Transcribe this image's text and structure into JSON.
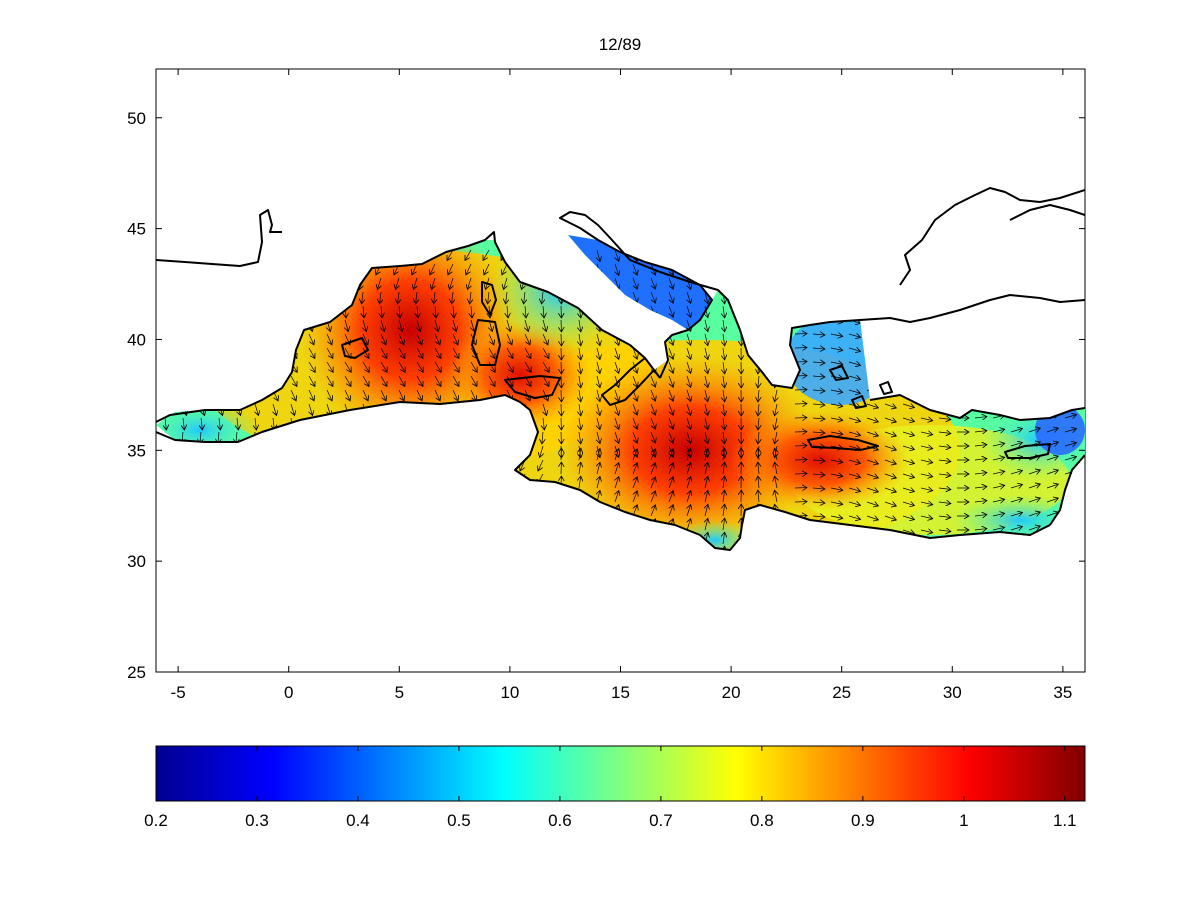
{
  "map": {
    "title": "12/89",
    "region": "Mediterranean Sea",
    "x_ticks": [
      "-5",
      "0",
      "5",
      "10",
      "15",
      "20",
      "25",
      "30",
      "35"
    ],
    "y_ticks": [
      "25",
      "30",
      "35",
      "40",
      "45",
      "50"
    ],
    "colormap": "jet",
    "colors": {
      "low": "#00008f",
      "mid": "#00ffff",
      "high_mid": "#ffff00",
      "high": "#ff0000",
      "max": "#800000",
      "coastline": "#000000",
      "arrows": "#000000"
    }
  },
  "colorbar": {
    "min": 0.2,
    "max": 1.12,
    "tick_labels": [
      "0.2",
      "0.3",
      "0.4",
      "0.5",
      "0.6",
      "0.7",
      "0.8",
      "0.9",
      "1",
      "1.1"
    ]
  }
}
